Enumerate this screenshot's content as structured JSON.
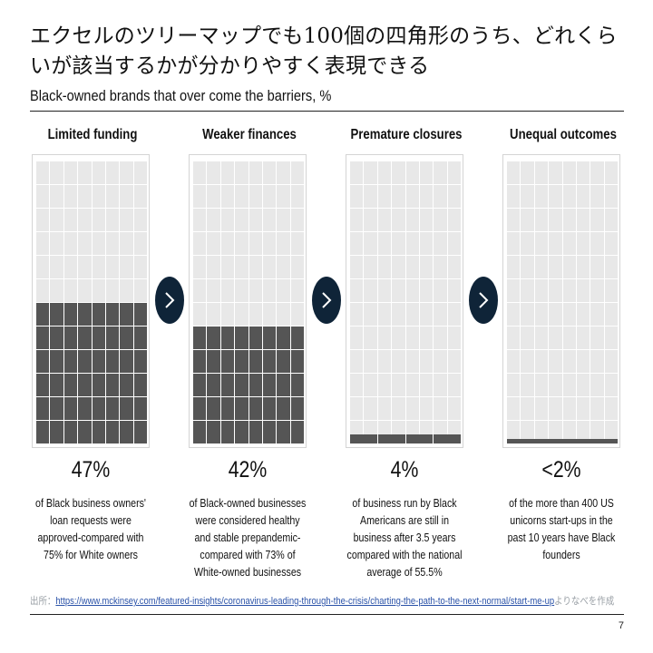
{
  "title": "エクセルのツリーマップでも100個の四角形のうち、どれくらいが該当するかが分かりやすく表現できる",
  "subtitle": "Black-owned brands that over come the barriers, %",
  "panels": [
    {
      "heading": "Limited funding",
      "value_text": "47%",
      "value": 47,
      "description": "of  Black business owners' loan requests were approved-compared with 75% for White owners"
    },
    {
      "heading": "Weaker finances",
      "value_text": "42%",
      "value": 42,
      "description": "of  Black-owned businesses were considered healthy  and stable prepandemic-compared with 73% of White-owned businesses"
    },
    {
      "heading": "Premature closures",
      "value_text": "4%",
      "value": 4,
      "description": "of business run  by Black Americans are still in business after 3.5 years compared with the national average of 55.5%"
    },
    {
      "heading": "Unequal outcomes",
      "value_text": "<2%",
      "value": 2,
      "description": "of the more than  400 US unicorns  start-ups in the past 10 years have Black founders"
    }
  ],
  "source": {
    "prefix": "出所：",
    "url": "https://www.mckinsey.com/featured-insights/coronavirus-leading-through-the-crisis/charting-the-path-to-the-next-normal/start-me-up",
    "suffix": "よりなべを作成"
  },
  "page_number": "7",
  "colors": {
    "filled": "#555555",
    "empty": "#e8e8e8",
    "arrow": "#0f2438"
  },
  "icons": {
    "arrow": "chevron-right-icon"
  }
}
